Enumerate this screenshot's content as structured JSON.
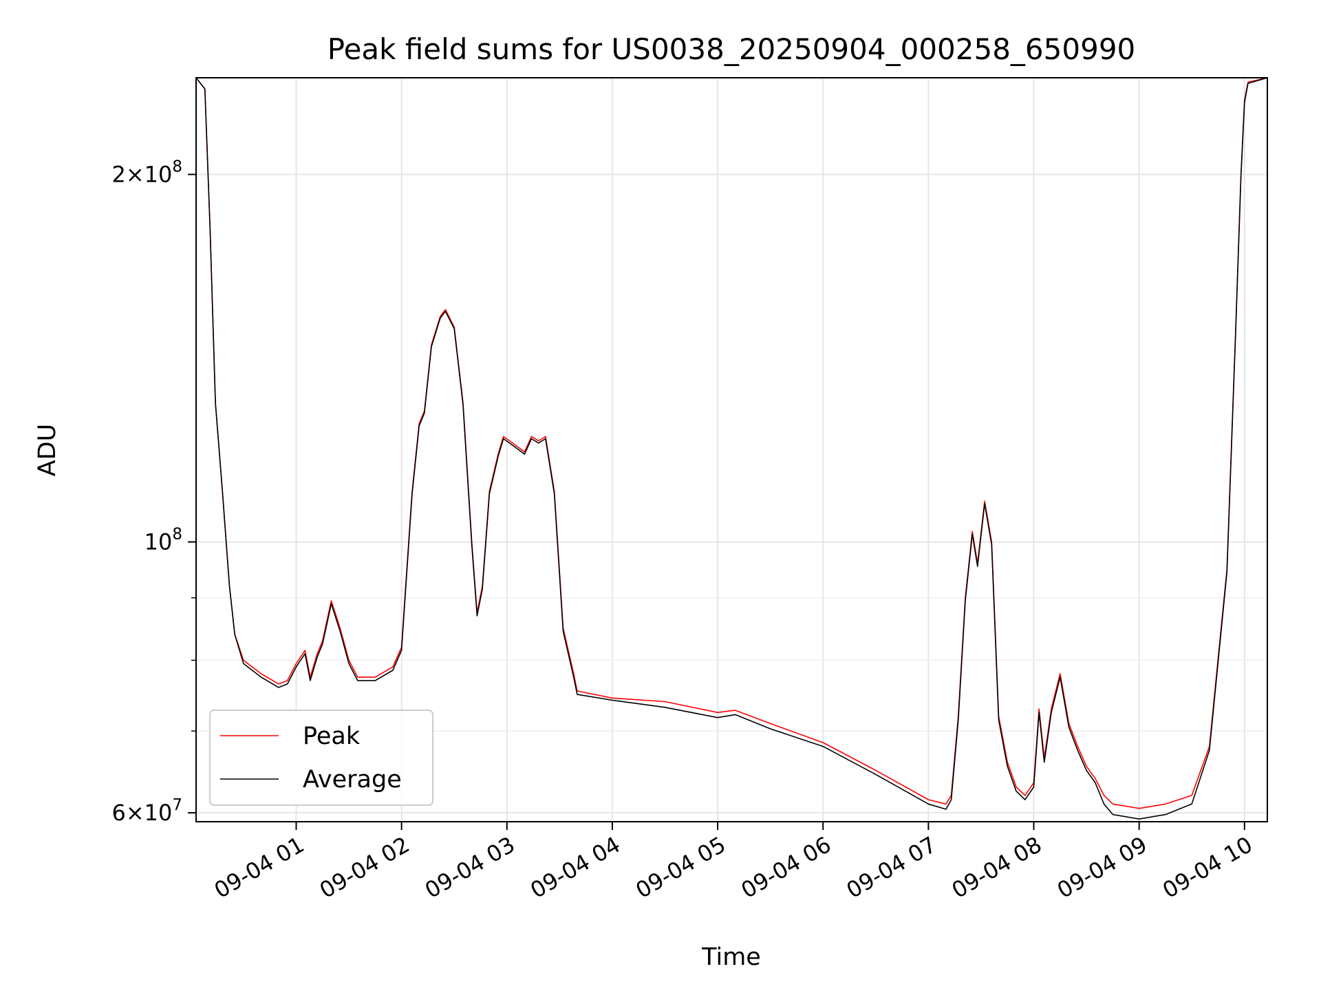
{
  "chart_data": {
    "type": "line",
    "title": "Peak field sums for US0038_20250904_000258_650990",
    "xlabel": "Time",
    "ylabel": "ADU",
    "yscale": "log",
    "ylim": [
      59000000,
      240000000
    ],
    "xlim": [
      "2025-09-04 00:03",
      "2025-09-04 10:13"
    ],
    "grid": true,
    "legend": "lower-left",
    "x_ticks": [
      {
        "value": "2025-09-04 01:00",
        "label": "09-04 01"
      },
      {
        "value": "2025-09-04 02:00",
        "label": "09-04 02"
      },
      {
        "value": "2025-09-04 03:00",
        "label": "09-04 03"
      },
      {
        "value": "2025-09-04 04:00",
        "label": "09-04 04"
      },
      {
        "value": "2025-09-04 05:00",
        "label": "09-04 05"
      },
      {
        "value": "2025-09-04 06:00",
        "label": "09-04 06"
      },
      {
        "value": "2025-09-04 07:00",
        "label": "09-04 07"
      },
      {
        "value": "2025-09-04 08:00",
        "label": "09-04 08"
      },
      {
        "value": "2025-09-04 09:00",
        "label": "09-04 09"
      },
      {
        "value": "2025-09-04 10:00",
        "label": "09-04 10"
      }
    ],
    "y_ticks": [
      {
        "value": 60000000,
        "base": "6",
        "exp": "7"
      },
      {
        "value": 100000000,
        "base": "",
        "exp": "8"
      },
      {
        "value": 200000000,
        "base": "2",
        "exp": "8"
      }
    ],
    "y_minor_ticks": [
      70000000,
      80000000,
      90000000
    ],
    "series": [
      {
        "name": "Peak",
        "color": "#ff0000",
        "points": [
          [
            "2025-09-04 00:03",
            240000000
          ],
          [
            "2025-09-04 00:08",
            235000000
          ],
          [
            "2025-09-04 00:11",
            180000000
          ],
          [
            "2025-09-04 00:14",
            130000000
          ],
          [
            "2025-09-04 00:18",
            110000000
          ],
          [
            "2025-09-04 00:22",
            92000000
          ],
          [
            "2025-09-04 00:25",
            84000000
          ],
          [
            "2025-09-04 00:30",
            80000000
          ],
          [
            "2025-09-04 00:40",
            78000000
          ],
          [
            "2025-09-04 00:50",
            76500000
          ],
          [
            "2025-09-04 00:55",
            77000000
          ],
          [
            "2025-09-04 01:00",
            79500000
          ],
          [
            "2025-09-04 01:05",
            81500000
          ],
          [
            "2025-09-04 01:08",
            77500000
          ],
          [
            "2025-09-04 01:12",
            81000000
          ],
          [
            "2025-09-04 01:15",
            83000000
          ],
          [
            "2025-09-04 01:20",
            89500000
          ],
          [
            "2025-09-04 01:25",
            85000000
          ],
          [
            "2025-09-04 01:30",
            80000000
          ],
          [
            "2025-09-04 01:35",
            77500000
          ],
          [
            "2025-09-04 01:45",
            77500000
          ],
          [
            "2025-09-04 01:55",
            79000000
          ],
          [
            "2025-09-04 02:00",
            82000000
          ],
          [
            "2025-09-04 02:03",
            95000000
          ],
          [
            "2025-09-04 02:06",
            110000000
          ],
          [
            "2025-09-04 02:10",
            125000000
          ],
          [
            "2025-09-04 02:13",
            128000000
          ],
          [
            "2025-09-04 02:17",
            145000000
          ],
          [
            "2025-09-04 02:22",
            153000000
          ],
          [
            "2025-09-04 02:25",
            155000000
          ],
          [
            "2025-09-04 02:30",
            150000000
          ],
          [
            "2025-09-04 02:35",
            130000000
          ],
          [
            "2025-09-04 02:40",
            100000000
          ],
          [
            "2025-09-04 02:43",
            87500000
          ],
          [
            "2025-09-04 02:46",
            92000000
          ],
          [
            "2025-09-04 02:50",
            110000000
          ],
          [
            "2025-09-04 02:55",
            118000000
          ],
          [
            "2025-09-04 02:58",
            122000000
          ],
          [
            "2025-09-04 03:05",
            120000000
          ],
          [
            "2025-09-04 03:10",
            118500000
          ],
          [
            "2025-09-04 03:14",
            122000000
          ],
          [
            "2025-09-04 03:18",
            121000000
          ],
          [
            "2025-09-04 03:22",
            122000000
          ],
          [
            "2025-09-04 03:27",
            110000000
          ],
          [
            "2025-09-04 03:32",
            85000000
          ],
          [
            "2025-09-04 03:38",
            78000000
          ],
          [
            "2025-09-04 03:40",
            75500000
          ],
          [
            "2025-09-04 04:00",
            74500000
          ],
          [
            "2025-09-04 04:30",
            74000000
          ],
          [
            "2025-09-04 05:00",
            72500000
          ],
          [
            "2025-09-04 05:10",
            72800000
          ],
          [
            "2025-09-04 05:30",
            71000000
          ],
          [
            "2025-09-04 06:00",
            68500000
          ],
          [
            "2025-09-04 06:30",
            65000000
          ],
          [
            "2025-09-04 07:00",
            61500000
          ],
          [
            "2025-09-04 07:10",
            61000000
          ],
          [
            "2025-09-04 07:13",
            62000000
          ],
          [
            "2025-09-04 07:17",
            72000000
          ],
          [
            "2025-09-04 07:21",
            90000000
          ],
          [
            "2025-09-04 07:25",
            102000000
          ],
          [
            "2025-09-04 07:28",
            96000000
          ],
          [
            "2025-09-04 07:32",
            108000000
          ],
          [
            "2025-09-04 07:36",
            100000000
          ],
          [
            "2025-09-04 07:40",
            72000000
          ],
          [
            "2025-09-04 07:45",
            66000000
          ],
          [
            "2025-09-04 07:50",
            63000000
          ],
          [
            "2025-09-04 07:55",
            62000000
          ],
          [
            "2025-09-04 08:00",
            63500000
          ],
          [
            "2025-09-04 08:03",
            73000000
          ],
          [
            "2025-09-04 08:06",
            66500000
          ],
          [
            "2025-09-04 08:10",
            73000000
          ],
          [
            "2025-09-04 08:15",
            78000000
          ],
          [
            "2025-09-04 08:20",
            71000000
          ],
          [
            "2025-09-04 08:25",
            68000000
          ],
          [
            "2025-09-04 08:30",
            65500000
          ],
          [
            "2025-09-04 08:35",
            64000000
          ],
          [
            "2025-09-04 08:40",
            62000000
          ],
          [
            "2025-09-04 08:45",
            61000000
          ],
          [
            "2025-09-04 09:00",
            60500000
          ],
          [
            "2025-09-04 09:15",
            61000000
          ],
          [
            "2025-09-04 09:30",
            62000000
          ],
          [
            "2025-09-04 09:40",
            68000000
          ],
          [
            "2025-09-04 09:50",
            95000000
          ],
          [
            "2025-09-04 09:55",
            150000000
          ],
          [
            "2025-09-04 09:58",
            200000000
          ],
          [
            "2025-09-04 10:00",
            230000000
          ],
          [
            "2025-09-04 10:02",
            238000000
          ],
          [
            "2025-09-04 10:13",
            240000000
          ]
        ]
      },
      {
        "name": "Average",
        "color": "#000000",
        "points": [
          [
            "2025-09-04 00:03",
            240000000
          ],
          [
            "2025-09-04 00:08",
            235000000
          ],
          [
            "2025-09-04 00:11",
            180000000
          ],
          [
            "2025-09-04 00:14",
            130000000
          ],
          [
            "2025-09-04 00:18",
            110000000
          ],
          [
            "2025-09-04 00:22",
            92000000
          ],
          [
            "2025-09-04 00:25",
            84000000
          ],
          [
            "2025-09-04 00:30",
            79500000
          ],
          [
            "2025-09-04 00:40",
            77500000
          ],
          [
            "2025-09-04 00:50",
            76000000
          ],
          [
            "2025-09-04 00:55",
            76500000
          ],
          [
            "2025-09-04 01:00",
            79000000
          ],
          [
            "2025-09-04 01:05",
            81000000
          ],
          [
            "2025-09-04 01:08",
            77000000
          ],
          [
            "2025-09-04 01:12",
            80500000
          ],
          [
            "2025-09-04 01:15",
            82500000
          ],
          [
            "2025-09-04 01:20",
            89000000
          ],
          [
            "2025-09-04 01:25",
            84500000
          ],
          [
            "2025-09-04 01:30",
            79500000
          ],
          [
            "2025-09-04 01:35",
            77000000
          ],
          [
            "2025-09-04 01:45",
            77000000
          ],
          [
            "2025-09-04 01:55",
            78500000
          ],
          [
            "2025-09-04 02:00",
            81500000
          ],
          [
            "2025-09-04 02:03",
            94500000
          ],
          [
            "2025-09-04 02:06",
            109500000
          ],
          [
            "2025-09-04 02:10",
            124500000
          ],
          [
            "2025-09-04 02:13",
            127500000
          ],
          [
            "2025-09-04 02:17",
            144500000
          ],
          [
            "2025-09-04 02:22",
            152500000
          ],
          [
            "2025-09-04 02:25",
            154500000
          ],
          [
            "2025-09-04 02:30",
            149500000
          ],
          [
            "2025-09-04 02:35",
            129500000
          ],
          [
            "2025-09-04 02:40",
            99500000
          ],
          [
            "2025-09-04 02:43",
            87000000
          ],
          [
            "2025-09-04 02:46",
            91500000
          ],
          [
            "2025-09-04 02:50",
            109500000
          ],
          [
            "2025-09-04 02:55",
            117500000
          ],
          [
            "2025-09-04 02:58",
            121500000
          ],
          [
            "2025-09-04 03:05",
            119500000
          ],
          [
            "2025-09-04 03:10",
            118000000
          ],
          [
            "2025-09-04 03:14",
            121500000
          ],
          [
            "2025-09-04 03:18",
            120500000
          ],
          [
            "2025-09-04 03:22",
            121500000
          ],
          [
            "2025-09-04 03:27",
            109500000
          ],
          [
            "2025-09-04 03:32",
            84500000
          ],
          [
            "2025-09-04 03:38",
            77500000
          ],
          [
            "2025-09-04 03:40",
            75000000
          ],
          [
            "2025-09-04 04:00",
            74200000
          ],
          [
            "2025-09-04 04:30",
            73200000
          ],
          [
            "2025-09-04 05:00",
            71800000
          ],
          [
            "2025-09-04 05:10",
            72200000
          ],
          [
            "2025-09-04 05:30",
            70300000
          ],
          [
            "2025-09-04 06:00",
            68000000
          ],
          [
            "2025-09-04 06:30",
            64500000
          ],
          [
            "2025-09-04 07:00",
            61000000
          ],
          [
            "2025-09-04 07:10",
            60400000
          ],
          [
            "2025-09-04 07:13",
            61500000
          ],
          [
            "2025-09-04 07:17",
            71500000
          ],
          [
            "2025-09-04 07:21",
            89500000
          ],
          [
            "2025-09-04 07:25",
            101500000
          ],
          [
            "2025-09-04 07:28",
            95500000
          ],
          [
            "2025-09-04 07:32",
            107500000
          ],
          [
            "2025-09-04 07:36",
            99500000
          ],
          [
            "2025-09-04 07:40",
            71500000
          ],
          [
            "2025-09-04 07:45",
            65500000
          ],
          [
            "2025-09-04 07:50",
            62500000
          ],
          [
            "2025-09-04 07:55",
            61500000
          ],
          [
            "2025-09-04 08:00",
            63000000
          ],
          [
            "2025-09-04 08:03",
            72500000
          ],
          [
            "2025-09-04 08:06",
            66000000
          ],
          [
            "2025-09-04 08:10",
            72500000
          ],
          [
            "2025-09-04 08:15",
            77500000
          ],
          [
            "2025-09-04 08:20",
            70500000
          ],
          [
            "2025-09-04 08:25",
            67500000
          ],
          [
            "2025-09-04 08:30",
            65000000
          ],
          [
            "2025-09-04 08:35",
            63500000
          ],
          [
            "2025-09-04 08:40",
            61000000
          ],
          [
            "2025-09-04 08:45",
            59800000
          ],
          [
            "2025-09-04 09:00",
            59300000
          ],
          [
            "2025-09-04 09:15",
            59800000
          ],
          [
            "2025-09-04 09:30",
            61000000
          ],
          [
            "2025-09-04 09:40",
            67500000
          ],
          [
            "2025-09-04 09:50",
            94500000
          ],
          [
            "2025-09-04 09:55",
            149500000
          ],
          [
            "2025-09-04 09:58",
            199500000
          ],
          [
            "2025-09-04 10:00",
            229000000
          ],
          [
            "2025-09-04 10:02",
            237500000
          ],
          [
            "2025-09-04 10:13",
            240000000
          ]
        ]
      }
    ]
  }
}
